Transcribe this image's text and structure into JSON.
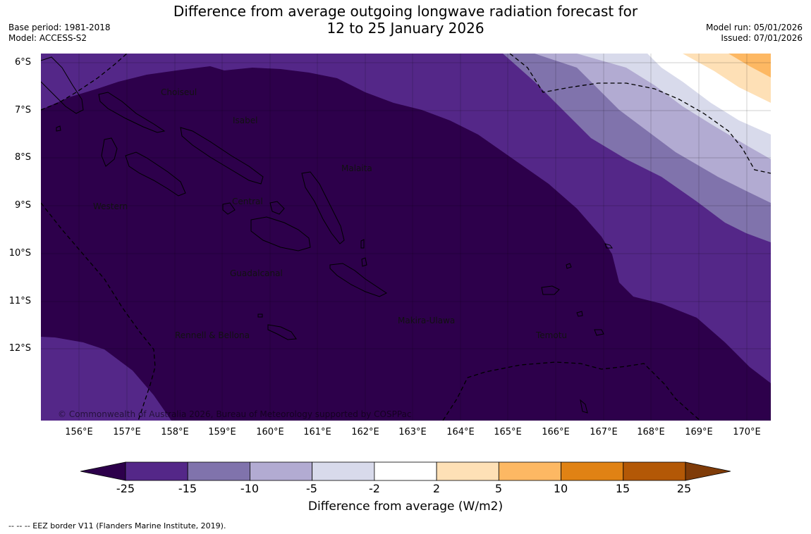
{
  "header": {
    "title_line1": "Difference from average outgoing longwave radiation forecast for",
    "title_line2": "12 to 25 January 2026",
    "base_period": "Base period: 1981-2018",
    "model": "Model: ACCESS-S2",
    "model_run": "Model run: 05/01/2026",
    "issued": "Issued: 07/01/2026"
  },
  "map": {
    "lat_labels": [
      "6°S",
      "7°S",
      "8°S",
      "9°S",
      "10°S",
      "11°S",
      "12°S"
    ],
    "lon_labels": [
      "156°E",
      "157°E",
      "158°E",
      "159°E",
      "160°E",
      "161°E",
      "162°E",
      "163°E",
      "164°E",
      "165°E",
      "166°E",
      "167°E",
      "168°E",
      "169°E",
      "170°E"
    ],
    "places": [
      "Choiseul",
      "Isabel",
      "Malaita",
      "Western",
      "Central",
      "Guadalcanal",
      "Makira-Ulawa",
      "Rennell & Bellona",
      "Temotu"
    ],
    "copyright": "© Commonwealth of Australia 2026, Bureau of Meteorology supported by COSPPac",
    "colors": {
      "below_-25": "#2d004b",
      "-25_-15": "#542788",
      "-15_-10": "#8073ac",
      "-10_-5": "#b2abd2",
      "-5_-2": "#d8daeb",
      "-2_2": "#ffffff",
      "2_5": "#fee0b6",
      "5_10": "#fdb863",
      "10_15": "#e08214",
      "15_25": "#b35806",
      "above_25": "#7f3b08"
    }
  },
  "colorbar": {
    "ticks": [
      "-25",
      "-15",
      "-10",
      "-5",
      "-2",
      "2",
      "5",
      "10",
      "15",
      "25"
    ],
    "colors": [
      "#542788",
      "#8073ac",
      "#b2abd2",
      "#d8daeb",
      "#ffffff",
      "#fee0b6",
      "#fdb863",
      "#e08214",
      "#b35806"
    ],
    "low_extend_color": "#2d004b",
    "high_extend_color": "#7f3b08",
    "title": "Difference from average (W/m2)"
  },
  "footnote": "--  --  -- EEZ border V11 (Flanders Marine Institute, 2019)."
}
